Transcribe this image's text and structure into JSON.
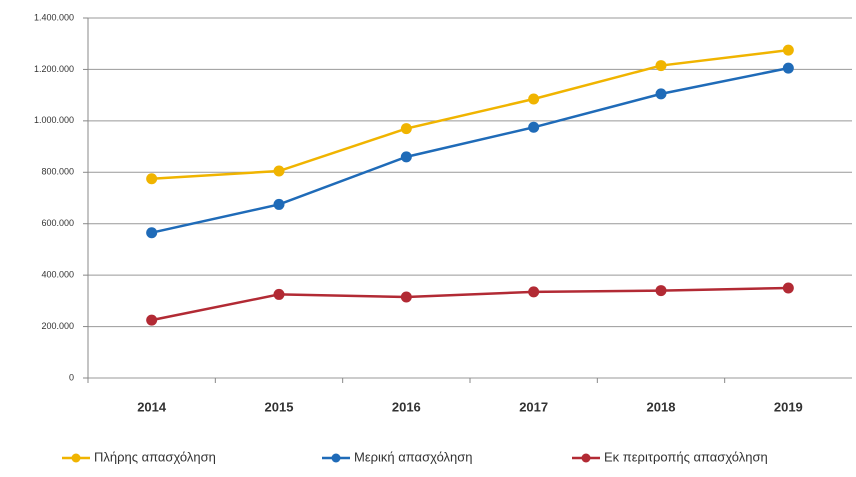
{
  "chart_data": {
    "type": "line",
    "categories": [
      "2014",
      "2015",
      "2016",
      "2017",
      "2018",
      "2019"
    ],
    "series": [
      {
        "name": "Πλήρης απασχόληση",
        "color": "#f0b400",
        "values": [
          775000,
          805000,
          970000,
          1085000,
          1215000,
          1275000
        ]
      },
      {
        "name": "Μερική απασχόληση",
        "color": "#1f6bb8",
        "values": [
          565000,
          675000,
          860000,
          975000,
          1105000,
          1205000
        ]
      },
      {
        "name": "Εκ περιτροπής απασχόληση",
        "color": "#b22a34",
        "values": [
          225000,
          325000,
          315000,
          335000,
          340000,
          350000
        ]
      }
    ],
    "ylim": [
      0,
      1400000
    ],
    "yticks": [
      0,
      {
        "value": 200000,
        "label": "200.000"
      },
      {
        "value": 400000,
        "label": "400.000"
      },
      {
        "value": 600000,
        "label": "600.000"
      },
      {
        "value": 800000,
        "label": "800.000"
      },
      {
        "value": 1000000,
        "label": "1.000.000"
      },
      {
        "value": 1200000,
        "label": "1.200.000"
      },
      {
        "value": 1400000,
        "label": "1.400.000"
      }
    ],
    "grid": true,
    "legend": "bottom"
  }
}
